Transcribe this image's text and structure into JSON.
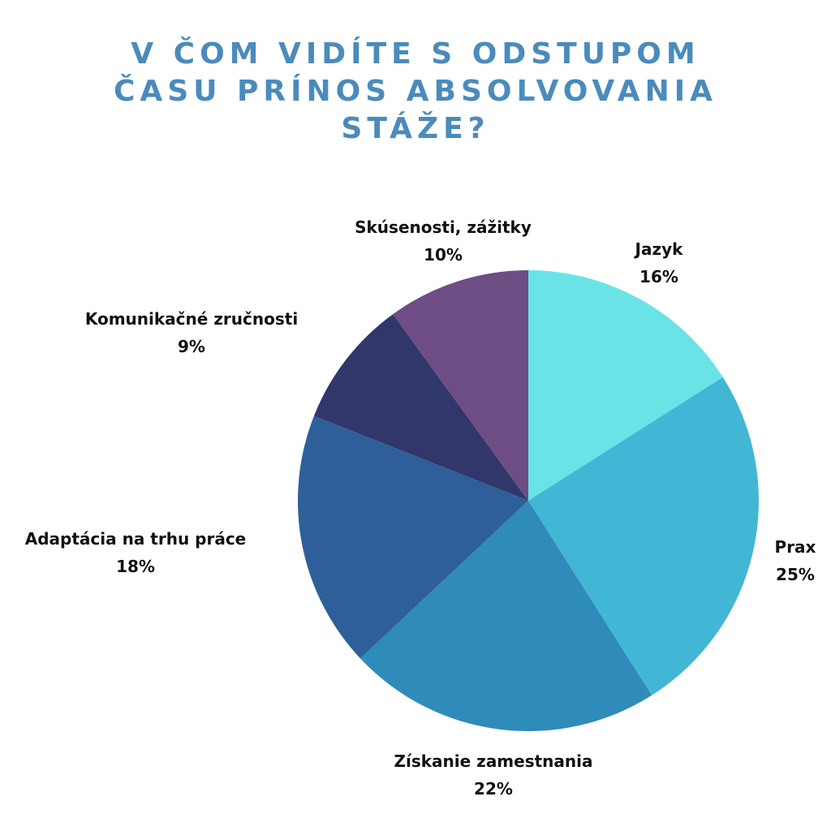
{
  "chart_data": {
    "type": "pie",
    "title_lines": [
      "V ČOM VIDÍTE S ODSTUPOM",
      "ČASU PRÍNOS ABSOLVOVANIA",
      "STÁŽE?"
    ],
    "slices": [
      {
        "label": "Jazyk",
        "value_label": "16%",
        "value": 16,
        "color": "#6ae3e6"
      },
      {
        "label": "Prax",
        "value_label": "25%",
        "value": 25,
        "color": "#42b6d5"
      },
      {
        "label": "Získanie zamestnania",
        "value_label": "22%",
        "value": 22,
        "color": "#2f8bba"
      },
      {
        "label": "Adaptácia na trhu práce",
        "value_label": "18%",
        "value": 18,
        "color": "#2f5f9a"
      },
      {
        "label": "Komunikačné zručnosti",
        "value_label": "9%",
        "value": 9,
        "color": "#31366b"
      },
      {
        "label": "Skúsenosti, zážitky",
        "value_label": "10%",
        "value": 10,
        "color": "#6e4d84"
      }
    ]
  }
}
